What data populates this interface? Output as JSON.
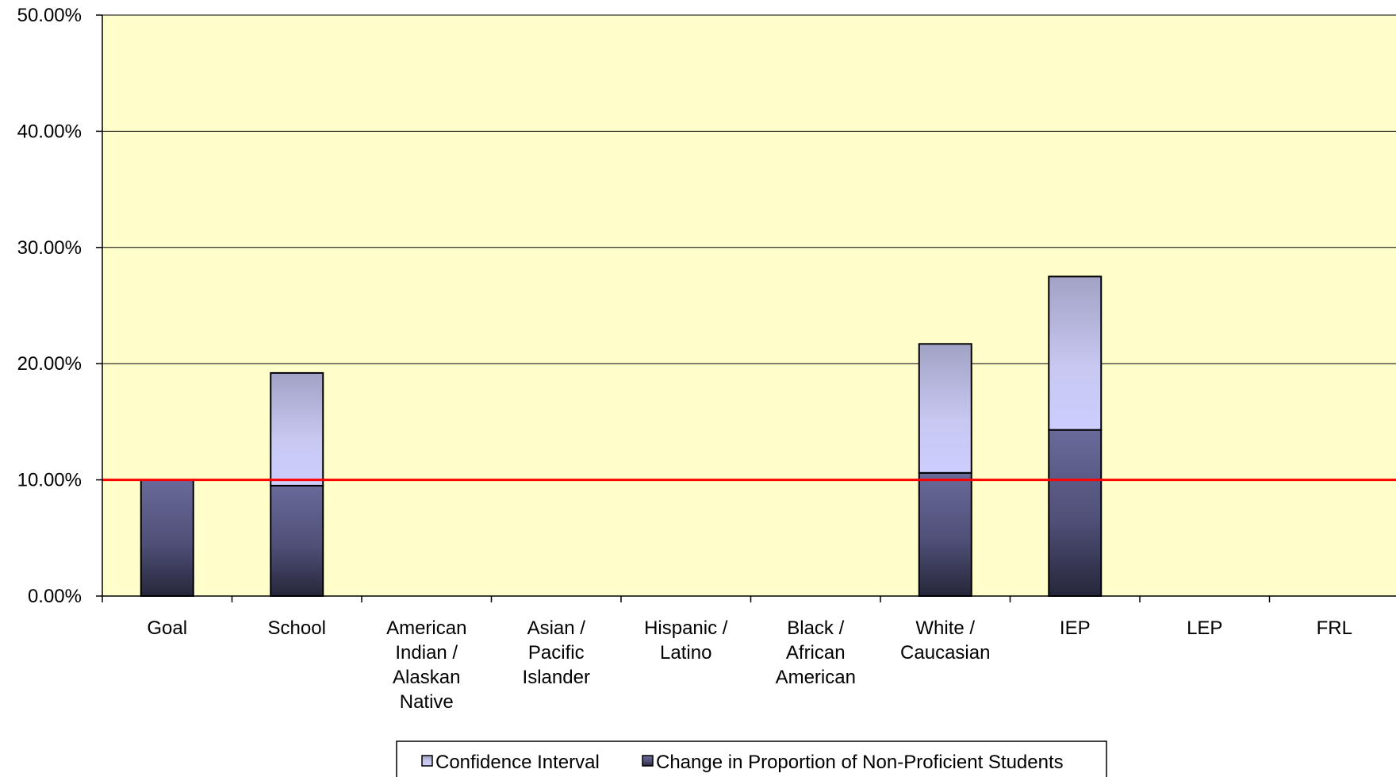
{
  "chart_data": {
    "type": "bar",
    "stacked": true,
    "categories": [
      "Goal",
      "School",
      "American Indian / Alaskan Native",
      "Asian / Pacific Islander",
      "Hispanic / Latino",
      "Black / African American",
      "White / Caucasian",
      "IEP",
      "LEP",
      "FRL"
    ],
    "category_lines": [
      [
        "Goal"
      ],
      [
        "School"
      ],
      [
        "American",
        "Indian /",
        "Alaskan",
        "Native"
      ],
      [
        "Asian /",
        "Pacific",
        "Islander"
      ],
      [
        "Hispanic /",
        "Latino"
      ],
      [
        "Black /",
        "African",
        "American"
      ],
      [
        "White /",
        "Caucasian"
      ],
      [
        "IEP"
      ],
      [
        "LEP"
      ],
      [
        "FRL"
      ]
    ],
    "series": [
      {
        "name": "Change in Proportion of Non-Proficient Students",
        "color": "#4f4f7a",
        "values": [
          10.0,
          9.5,
          null,
          null,
          null,
          null,
          10.6,
          14.3,
          null,
          null
        ]
      },
      {
        "name": "Confidence Interval",
        "color": "#c8c8f0",
        "values": [
          0,
          9.7,
          null,
          null,
          null,
          null,
          11.1,
          13.2,
          null,
          null
        ]
      }
    ],
    "legend_order": [
      "Confidence Interval",
      "Change in Proportion of Non-Proficient Students"
    ],
    "reference_line": {
      "value": 10.0,
      "color": "#ff0000"
    },
    "y_ticks": [
      "0.00%",
      "10.00%",
      "20.00%",
      "30.00%",
      "40.00%",
      "50.00%"
    ],
    "ylim": [
      0,
      50
    ],
    "grid": true,
    "legend_position": "bottom",
    "plot_background": "#ffffcc",
    "title": "",
    "xlabel": "",
    "ylabel": ""
  }
}
